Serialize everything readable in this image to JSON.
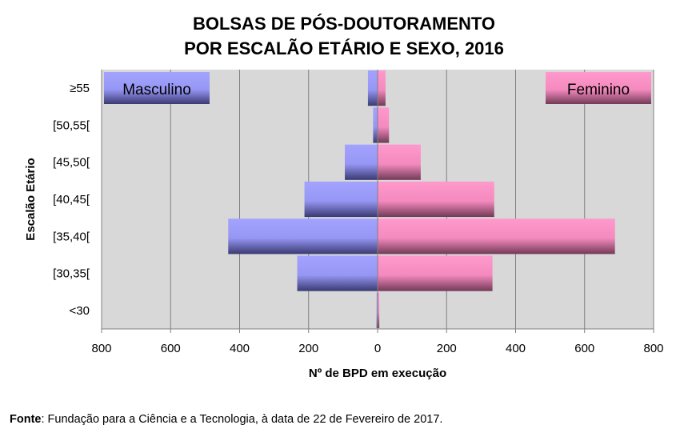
{
  "chart_data": {
    "type": "bar",
    "orientation": "horizontal-population-pyramid",
    "title_lines": [
      "BOLSAS DE PÓS-DOUTORAMENTO",
      "POR ESCALÃO ETÁRIO E SEXO, 2016"
    ],
    "xlabel": "Nº de BPD em execução",
    "ylabel": "Escalão Etário",
    "categories": [
      "<30",
      "[30,35[",
      "[35,40[",
      "[40,45[",
      "[45,50[",
      "[50,55[",
      "≥55"
    ],
    "series": [
      {
        "name": "Masculino",
        "color": "#9999ff",
        "values": [
          3,
          233,
          433,
          212,
          95,
          13,
          28
        ]
      },
      {
        "name": "Feminino",
        "color": "#ff8cc6",
        "values": [
          5,
          333,
          688,
          338,
          125,
          33,
          23
        ]
      }
    ],
    "x_ticks": [
      -800,
      -600,
      -400,
      -200,
      0,
      200,
      400,
      600,
      800
    ],
    "x_tick_labels": [
      "800",
      "600",
      "400",
      "200",
      "0",
      "200",
      "400",
      "600",
      "800"
    ],
    "xlim": [
      -800,
      800
    ],
    "grid": true,
    "legend_placement": "top-left and top-right boxes"
  },
  "source": {
    "label": "Fonte",
    "text": ": Fundação para a Ciência e a Tecnologia, à data de 22 de Fevereiro de 2017."
  }
}
